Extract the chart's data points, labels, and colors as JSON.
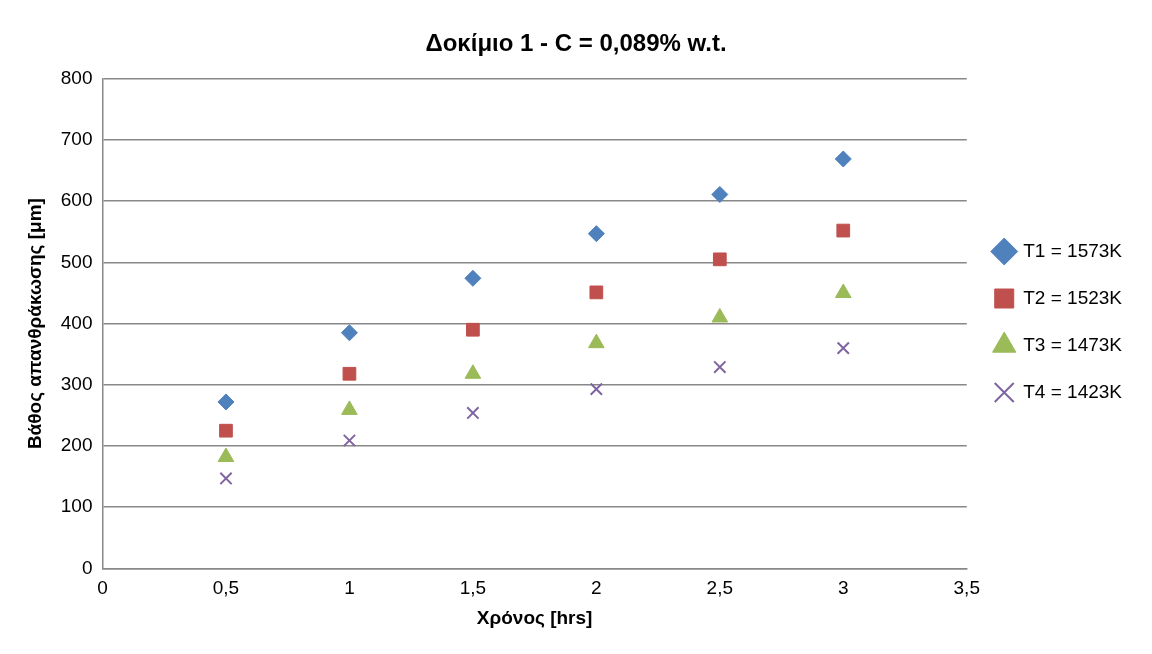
{
  "chart_data": {
    "type": "scatter",
    "title": "Δοκίμιο 1 - C = 0,089% w.t.",
    "xlabel": "Χρόνος [hrs]",
    "ylabel": "Βάθος απανθράκωσης [μm]",
    "x": [
      0.5,
      1,
      1.5,
      2,
      2.5,
      3
    ],
    "series": [
      {
        "name": "T1 = 1573K",
        "color": "#4f81bd",
        "marker": "diamond",
        "values": [
          272,
          385,
          474,
          547,
          611,
          669
        ]
      },
      {
        "name": "T2 = 1523K",
        "color": "#c0504d",
        "marker": "square",
        "values": [
          225,
          318,
          390,
          451,
          505,
          552
        ]
      },
      {
        "name": "T3 = 1473K",
        "color": "#9bbb59",
        "marker": "triangle",
        "values": [
          182,
          259,
          318,
          368,
          410,
          450
        ]
      },
      {
        "name": "T4 = 1423K",
        "color": "#8064a2",
        "marker": "cross",
        "values": [
          147,
          209,
          254,
          293,
          329,
          360
        ]
      }
    ],
    "xlim": [
      0,
      3.5
    ],
    "xticks": [
      0,
      {
        "value": 0.5,
        "label": "0,5"
      },
      1,
      {
        "value": 1.5,
        "label": "1,5"
      },
      2,
      {
        "value": 2.5,
        "label": "2,5"
      },
      3,
      {
        "value": 3.5,
        "label": "3,5"
      }
    ],
    "ylim": [
      0,
      800
    ],
    "yticks": [
      0,
      100,
      200,
      300,
      400,
      500,
      600,
      700,
      800
    ],
    "grid": "y",
    "legend": "right"
  }
}
